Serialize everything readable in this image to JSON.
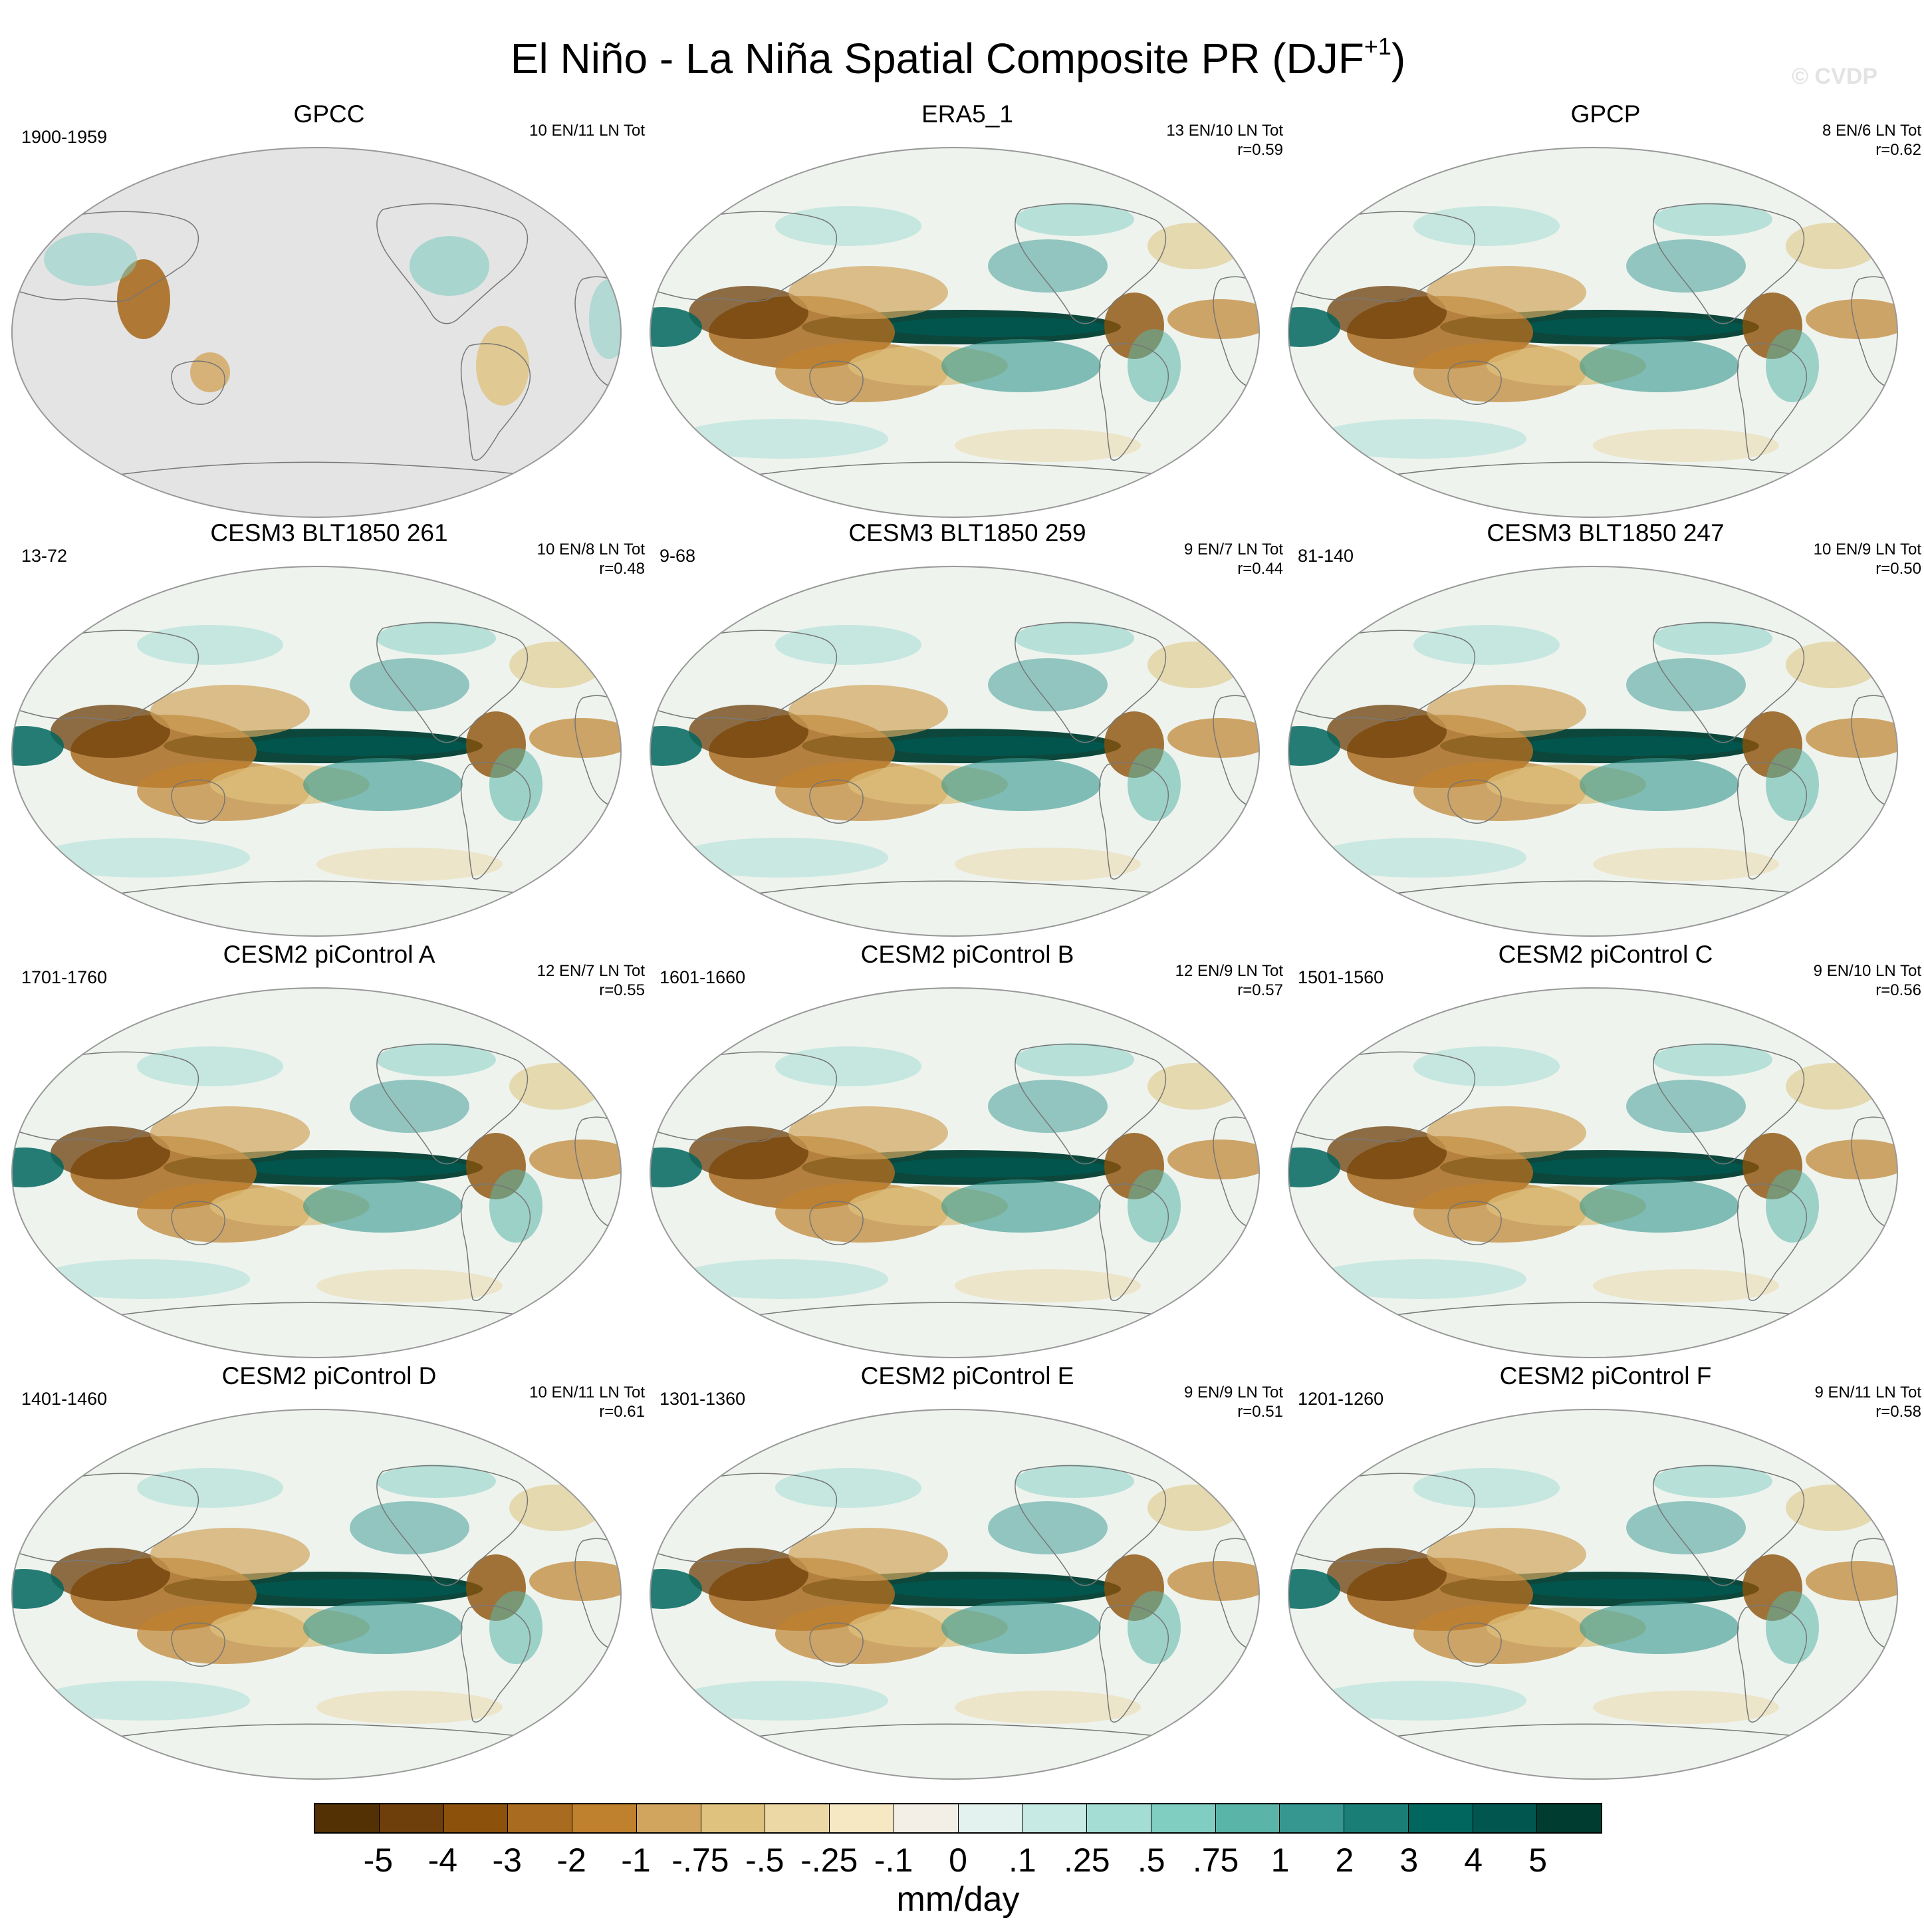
{
  "figure": {
    "title_main": "El Niño - La Niña Spatial Composite PR (DJF",
    "title_sup": "+1",
    "title_close": ")",
    "watermark": "© CVDP"
  },
  "panels": [
    {
      "title": "GPCC",
      "years": "1900-1959",
      "counts": "10 EN/11 LN Tot",
      "r": "",
      "coverage": "land-only"
    },
    {
      "title": "ERA5_1",
      "years": "",
      "counts": "13 EN/10 LN Tot",
      "r": "r=0.59",
      "coverage": "global"
    },
    {
      "title": "GPCP",
      "years": "",
      "counts": "8 EN/6 LN Tot",
      "r": "r=0.62",
      "coverage": "global"
    },
    {
      "title": "CESM3 BLT1850 261",
      "years": "13-72",
      "counts": "10 EN/8 LN Tot",
      "r": "r=0.48",
      "coverage": "global"
    },
    {
      "title": "CESM3 BLT1850 259",
      "years": "9-68",
      "counts": "9 EN/7 LN Tot",
      "r": "r=0.44",
      "coverage": "global"
    },
    {
      "title": "CESM3 BLT1850 247",
      "years": "81-140",
      "counts": "10 EN/9 LN Tot",
      "r": "r=0.50",
      "coverage": "global"
    },
    {
      "title": "CESM2 piControl A",
      "years": "1701-1760",
      "counts": "12 EN/7 LN Tot",
      "r": "r=0.55",
      "coverage": "global"
    },
    {
      "title": "CESM2 piControl B",
      "years": "1601-1660",
      "counts": "12 EN/9 LN Tot",
      "r": "r=0.57",
      "coverage": "global"
    },
    {
      "title": "CESM2 piControl C",
      "years": "1501-1560",
      "counts": "9 EN/10 LN Tot",
      "r": "r=0.56",
      "coverage": "global"
    },
    {
      "title": "CESM2 piControl D",
      "years": "1401-1460",
      "counts": "10 EN/11 LN Tot",
      "r": "r=0.61",
      "coverage": "global"
    },
    {
      "title": "CESM2 piControl E",
      "years": "1301-1360",
      "counts": "9 EN/9 LN Tot",
      "r": "r=0.51",
      "coverage": "global"
    },
    {
      "title": "CESM2 piControl F",
      "years": "1201-1260",
      "counts": "9 EN/11 LN Tot",
      "r": "r=0.58",
      "coverage": "global"
    }
  ],
  "colorbar": {
    "units": "mm/day",
    "labels": [
      "-5",
      "-4",
      "-3",
      "-2",
      "-1",
      "-.75",
      "-.5",
      "-.25",
      "-.1",
      "0",
      ".1",
      ".25",
      ".5",
      ".75",
      "1",
      "2",
      "3",
      "4",
      "5"
    ],
    "colors": [
      "#543005",
      "#6e3f0a",
      "#8c510a",
      "#a96b20",
      "#bf812d",
      "#d2a55e",
      "#dfc27d",
      "#ecd8a4",
      "#f6e8c3",
      "#f3efe6",
      "#e4f2ef",
      "#c7eae5",
      "#a4ddd3",
      "#80cdc1",
      "#5ab4a8",
      "#35978f",
      "#1b7e76",
      "#01665e",
      "#01574f",
      "#003c30"
    ]
  }
}
